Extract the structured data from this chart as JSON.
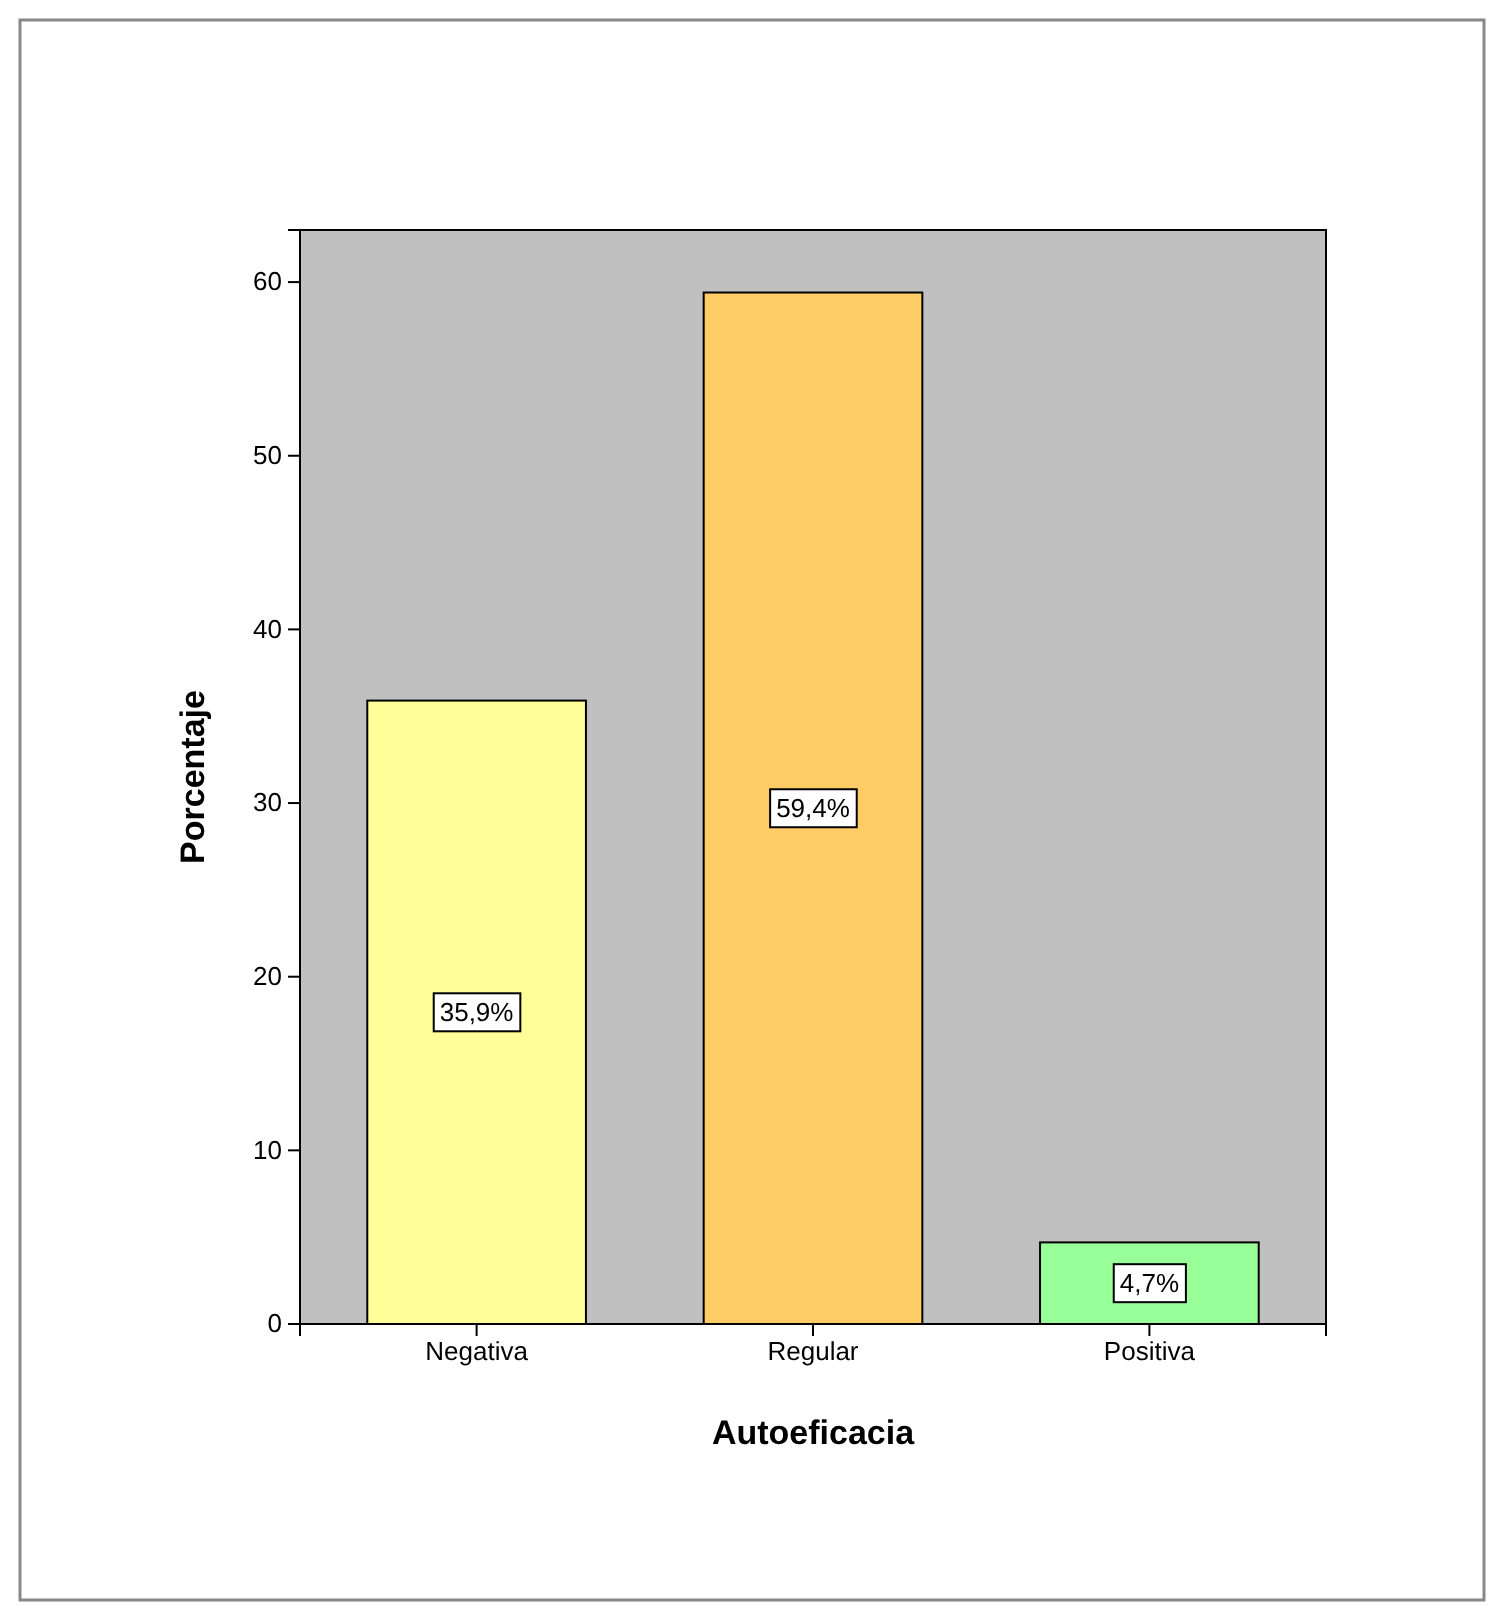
{
  "chart_data": {
    "type": "bar",
    "xlabel": "Autoeficacia",
    "ylabel": "Porcentaje",
    "categories": [
      "Negativa",
      "Regular",
      "Positiva"
    ],
    "values": [
      35.9,
      59.4,
      4.7
    ],
    "colors": [
      "#ffff99",
      "#ffcc66",
      "#99ff99"
    ],
    "value_labels": [
      "35,9%",
      "59,4%",
      "4,7%"
    ],
    "ylim": [
      0,
      63
    ],
    "yticks": [
      0,
      10,
      20,
      30,
      40,
      50,
      60
    ],
    "grid": false
  }
}
